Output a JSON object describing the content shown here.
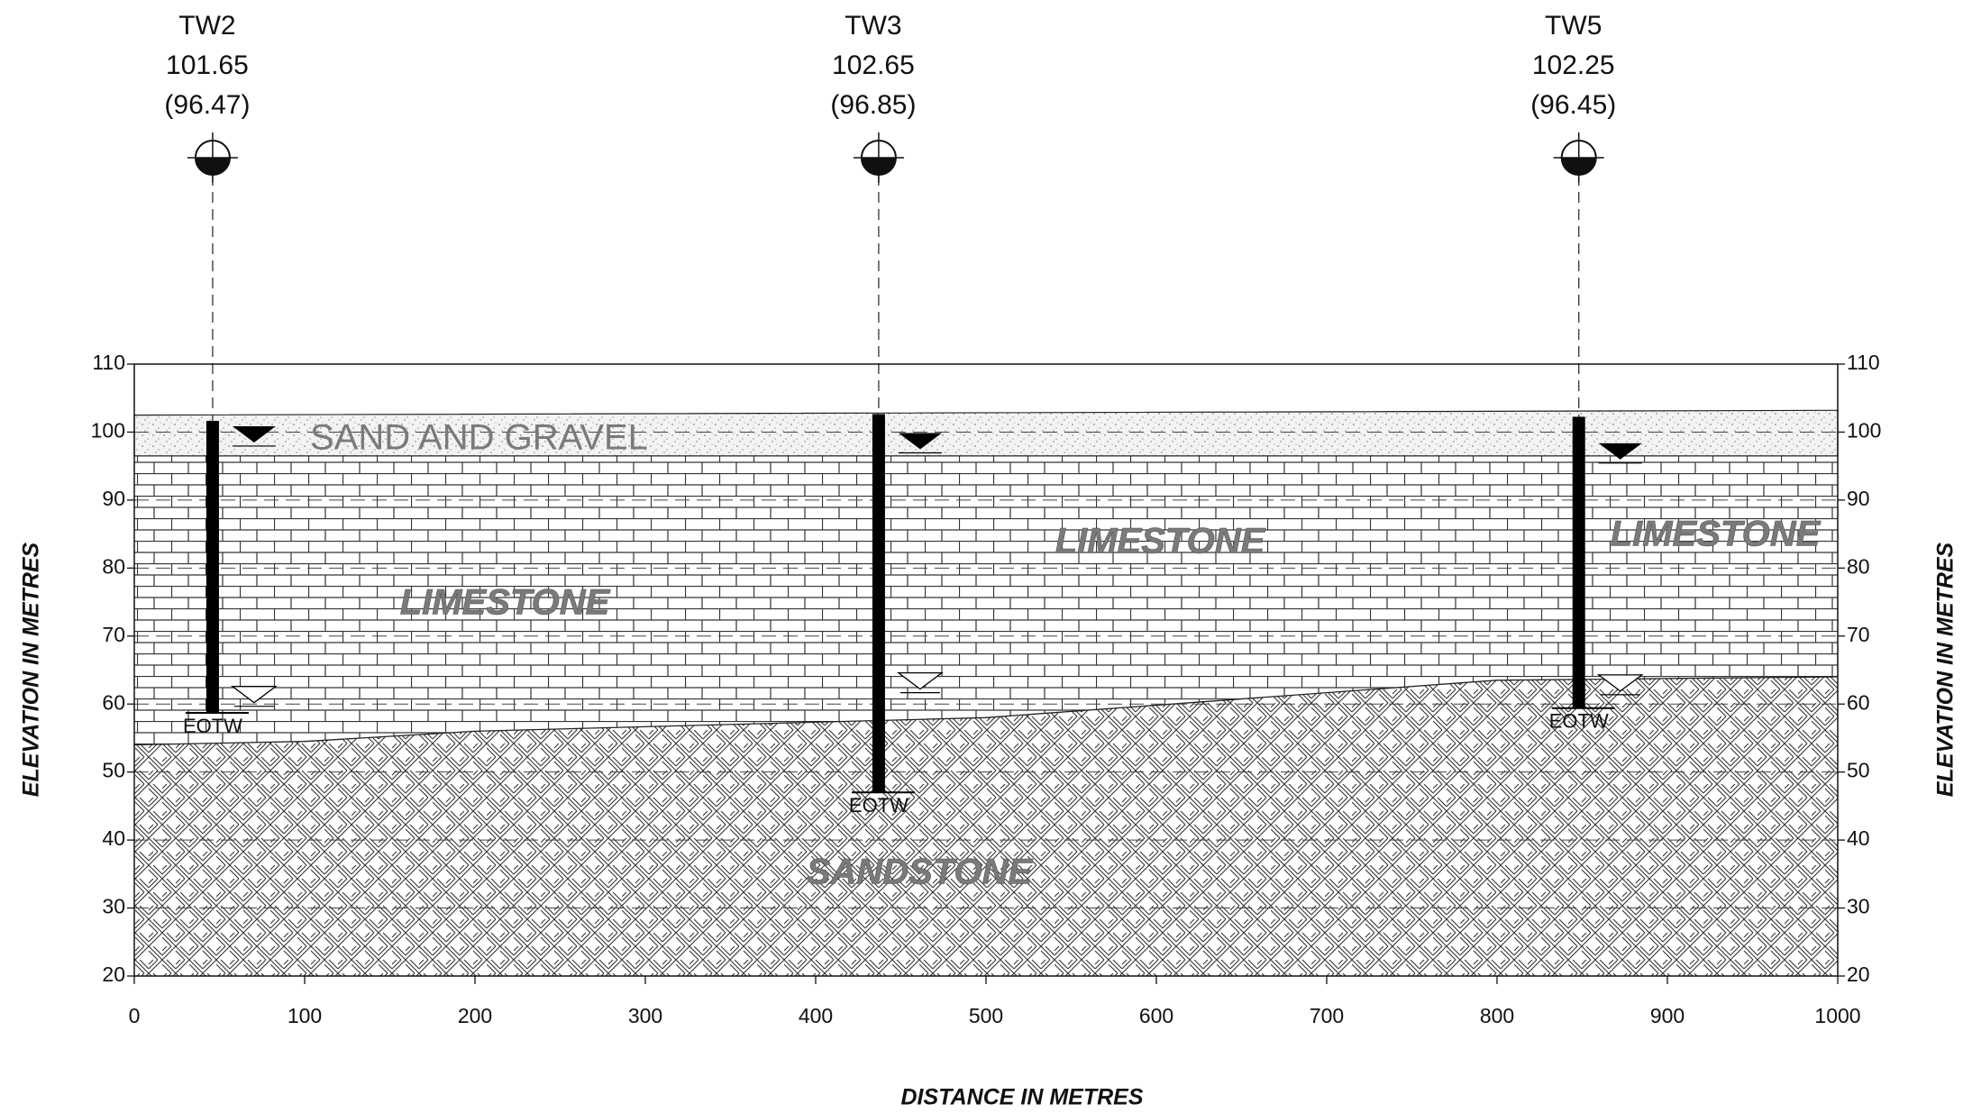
{
  "axes": {
    "xlim": [
      0,
      1000
    ],
    "ylim": [
      20,
      110
    ],
    "xticks": [
      0,
      100,
      200,
      300,
      400,
      500,
      600,
      700,
      800,
      900,
      1000
    ],
    "yticks": [
      20,
      30,
      40,
      50,
      60,
      70,
      80,
      90,
      100,
      110
    ],
    "grid": true,
    "x_label": "DISTANCE IN METRES",
    "y_label": "ELEVATION IN METRES"
  },
  "wells": [
    {
      "name": "TW2",
      "x": 46,
      "ground": 101.65,
      "reading": "(96.47)",
      "bottom": 58.7,
      "bottom_label": "EOTW",
      "water_marker": 99.8,
      "lower_water_marker": 61
    },
    {
      "name": "TW3",
      "x": 437,
      "ground": 102.65,
      "reading": "(96.85)",
      "bottom": 47,
      "bottom_label": "EOTW",
      "water_marker": 98.8,
      "lower_water_marker": 63
    },
    {
      "name": "TW5",
      "x": 848,
      "ground": 102.25,
      "reading": "(96.45)",
      "bottom": 59.4,
      "bottom_label": "EOTW",
      "water_marker": 97.3,
      "lower_water_marker": 62.7
    }
  ],
  "layers": {
    "sand": {
      "label": "SAND AND GRAVEL",
      "top_x": [
        0,
        1000
      ],
      "top_y": [
        102.5,
        103.2
      ],
      "bottom_x": [
        0,
        1000
      ],
      "bottom_y": [
        96.5,
        96.5
      ]
    },
    "limestone": {
      "labels": [
        "LIMESTONE",
        "LIMESTONE",
        "LIMESTONE"
      ]
    },
    "sandstone": {
      "label": "SANDSTONE",
      "top_x": [
        0,
        100,
        200,
        500,
        800,
        1000
      ],
      "top_y": [
        54,
        54.5,
        56,
        58,
        63.5,
        64
      ]
    }
  }
}
